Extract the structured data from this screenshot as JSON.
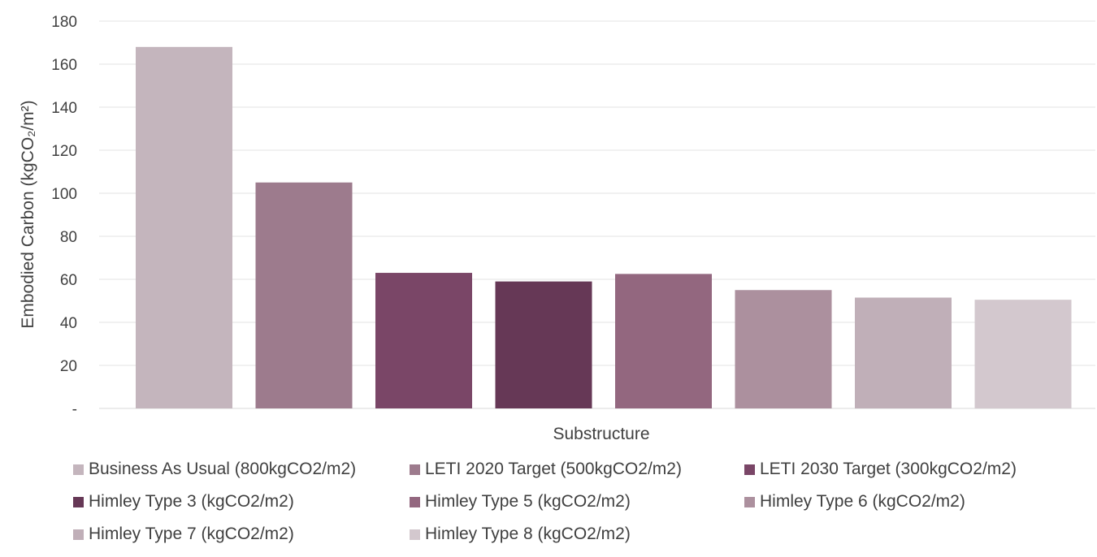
{
  "chart_data": {
    "type": "bar",
    "categories": [
      "Substructure"
    ],
    "xlabel": "Substructure",
    "ylabel": "Embodied Carbon (kgCO₂/m²)",
    "ylim": [
      0,
      180
    ],
    "yticks": [
      {
        "value": 0,
        "label": "-"
      },
      {
        "value": 20,
        "label": "20"
      },
      {
        "value": 40,
        "label": "40"
      },
      {
        "value": 60,
        "label": "60"
      },
      {
        "value": 80,
        "label": "80"
      },
      {
        "value": 100,
        "label": "100"
      },
      {
        "value": 120,
        "label": "120"
      },
      {
        "value": 140,
        "label": "140"
      },
      {
        "value": 160,
        "label": "160"
      },
      {
        "value": 180,
        "label": "180"
      }
    ],
    "grid": true,
    "legend_position": "bottom",
    "series": [
      {
        "name": "Business As Usual (800kgCO2/m2)",
        "values": [
          168
        ],
        "color": "#c4b5bd"
      },
      {
        "name": "LETI 2020 Target (500kgCO2/m2)",
        "values": [
          105
        ],
        "color": "#9d7b8d"
      },
      {
        "name": "LETI 2030 Target (300kgCO2/m2)",
        "values": [
          63
        ],
        "color": "#7a4667"
      },
      {
        "name": "Himley Type 3 (kgCO2/m2)",
        "values": [
          59
        ],
        "color": "#663856"
      },
      {
        "name": "Himley Type 5 (kgCO2/m2)",
        "values": [
          62.5
        ],
        "color": "#93677f"
      },
      {
        "name": "Himley Type 6 (kgCO2/m2)",
        "values": [
          55
        ],
        "color": "#ac909e"
      },
      {
        "name": "Himley Type 7 (kgCO2/m2)",
        "values": [
          51.5
        ],
        "color": "#c0afb8"
      },
      {
        "name": "Himley Type 8 (kgCO2/m2)",
        "values": [
          50.5
        ],
        "color": "#d3c8ce"
      }
    ]
  }
}
